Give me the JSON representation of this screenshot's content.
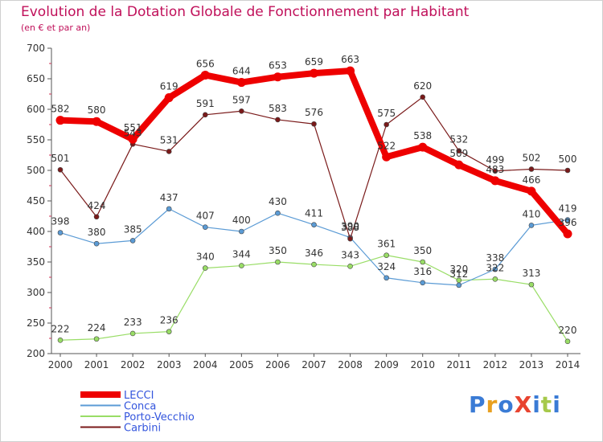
{
  "header": {
    "title": "Evolution de la Dotation Globale de Fonctionnement par Habitant",
    "subtitle": "(en € et par an)"
  },
  "logo": {
    "text": "ProXiti",
    "colors": [
      "#3a7bd5",
      "#e8a020",
      "#3a7bd5",
      "#e8432f",
      "#3a7bd5",
      "#a6c94a",
      "#3a7bd5"
    ]
  },
  "chart_data": {
    "type": "line",
    "x": [
      "2000",
      "2001",
      "2002",
      "2003",
      "2004",
      "2005",
      "2006",
      "2007",
      "2008",
      "2009",
      "2010",
      "2011",
      "2012",
      "2013",
      "2014"
    ],
    "ylim": [
      200,
      700
    ],
    "yticks": [
      200,
      250,
      300,
      350,
      400,
      450,
      500,
      550,
      600,
      650,
      700
    ],
    "grid": false,
    "legend_position": "bottom-left",
    "series": [
      {
        "name": "LECCI",
        "color": "#ee0000",
        "values": [
          582,
          580,
          551,
          619,
          656,
          644,
          653,
          659,
          663,
          522,
          538,
          509,
          483,
          466,
          396
        ],
        "labels": [
          "582",
          "580",
          "551",
          "619",
          "656",
          "644",
          "653",
          "659",
          "663",
          "522",
          "538",
          "509",
          "483",
          "466",
          "396"
        ]
      },
      {
        "name": "Conca",
        "color": "#5b9bd5",
        "values": [
          398,
          380,
          385,
          437,
          407,
          400,
          430,
          411,
          390,
          324,
          316,
          312,
          338,
          410,
          419
        ],
        "labels": [
          "398",
          "380",
          "385",
          "437",
          "407",
          "400",
          "430",
          "411",
          "390",
          "324",
          "316",
          "312",
          "338",
          "410",
          "419"
        ]
      },
      {
        "name": "Porto-Vecchio",
        "color": "#99dd66",
        "values": [
          222,
          224,
          233,
          236,
          340,
          344,
          350,
          346,
          343,
          361,
          350,
          320,
          322,
          313,
          220
        ],
        "labels": [
          "222",
          "224",
          "233",
          "236",
          "340",
          "344",
          "350",
          "346",
          "343",
          "361",
          "350",
          "320",
          "322",
          "313",
          "220"
        ]
      },
      {
        "name": "Carbini",
        "color": "#7a1a1a",
        "values": [
          501,
          424,
          543,
          531,
          591,
          597,
          583,
          576,
          388,
          575,
          620,
          532,
          499,
          502,
          500
        ],
        "labels": [
          "501",
          "424",
          "543",
          "531",
          "591",
          "597",
          "583",
          "576",
          "388",
          "575",
          "620",
          "532",
          "499",
          "502",
          "500"
        ]
      }
    ]
  }
}
